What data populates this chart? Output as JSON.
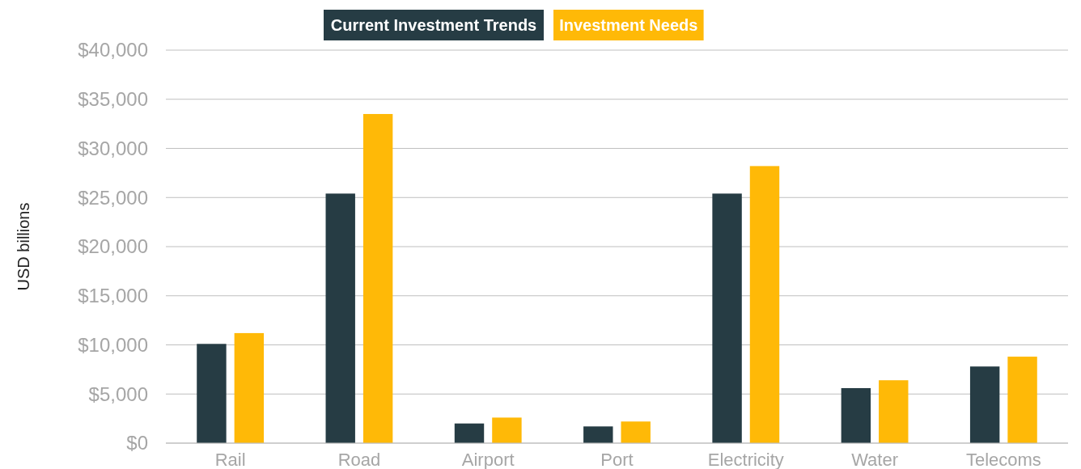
{
  "chart_data": {
    "type": "bar",
    "ylabel": "USD billions",
    "categories": [
      "Rail",
      "Road",
      "Airport",
      "Port",
      "Electricity",
      "Water",
      "Telecoms"
    ],
    "series": [
      {
        "name": "Current Investment Trends",
        "color": "#263c44",
        "values": [
          10100,
          25400,
          2000,
          1700,
          25400,
          5600,
          7800
        ]
      },
      {
        "name": "Investment Needs",
        "color": "#ffb907",
        "values": [
          11200,
          33500,
          2600,
          2200,
          28200,
          6400,
          8800
        ]
      }
    ],
    "ylim": [
      0,
      40000
    ],
    "yticks": [
      {
        "value": 0,
        "label": "$0"
      },
      {
        "value": 5000,
        "label": "$5,000"
      },
      {
        "value": 10000,
        "label": "$10,000"
      },
      {
        "value": 15000,
        "label": "$15,000"
      },
      {
        "value": 20000,
        "label": "$20,000"
      },
      {
        "value": 25000,
        "label": "$25,000"
      },
      {
        "value": 30000,
        "label": "$30,000"
      },
      {
        "value": 35000,
        "label": "$35,000"
      },
      {
        "value": 40000,
        "label": "$40,000"
      }
    ],
    "grid": "y",
    "legend": "top"
  }
}
